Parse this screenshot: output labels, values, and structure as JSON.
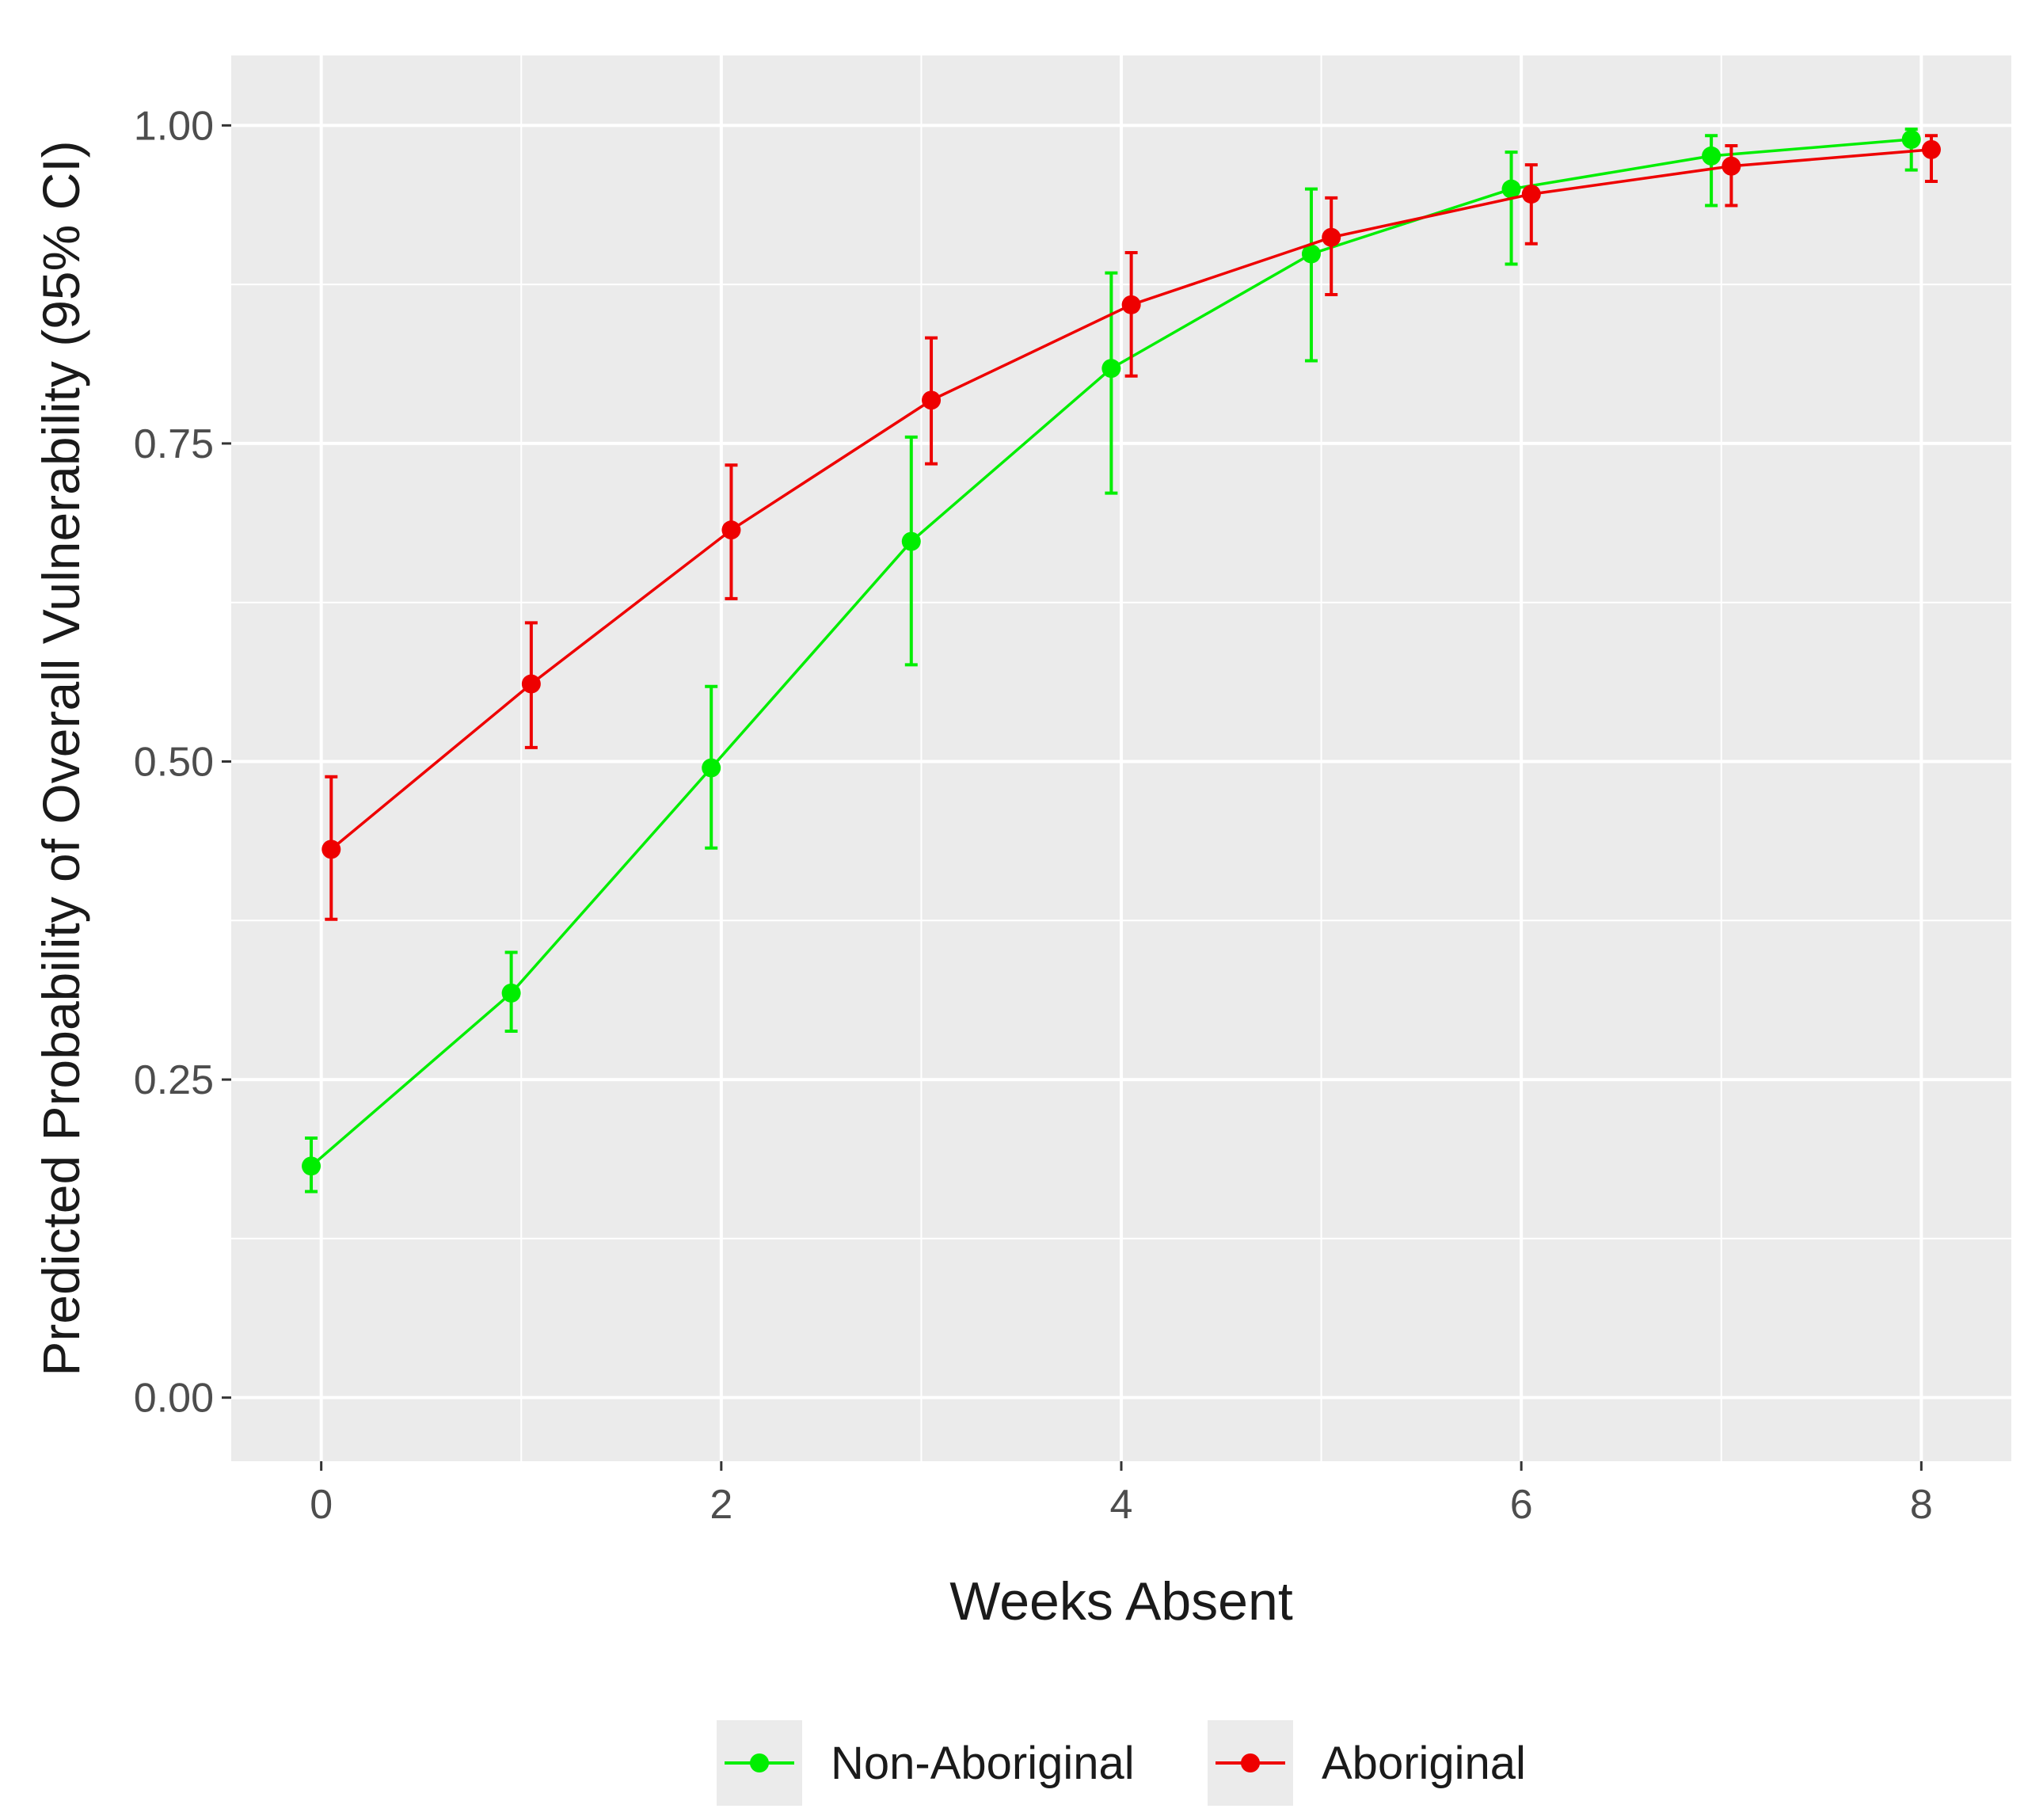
{
  "chart_data": {
    "type": "line",
    "title": "",
    "xlabel": "Weeks Absent",
    "ylabel": "Predicted Probability of Overall Vulnerability (95% CI)",
    "xlim": [
      -0.45,
      8.45
    ],
    "ylim": [
      -0.05,
      1.055
    ],
    "x_ticks": [
      0,
      2,
      4,
      6,
      8
    ],
    "x_tick_labels": [
      "0",
      "2",
      "4",
      "6",
      "8"
    ],
    "y_ticks": [
      0,
      0.25,
      0.5,
      0.75,
      1.0
    ],
    "y_tick_labels": [
      "0.00",
      "0.25",
      "0.50",
      "0.75",
      "1.00"
    ],
    "grid": true,
    "legend_position": "bottom",
    "series": [
      {
        "name": "Non-Aboriginal",
        "color": "#00ee00",
        "x": [
          0,
          1,
          2,
          3,
          4,
          5,
          6,
          7,
          8
        ],
        "y": [
          0.182,
          0.318,
          0.495,
          0.673,
          0.809,
          0.899,
          0.95,
          0.976,
          0.989
        ],
        "ci_low": [
          0.162,
          0.288,
          0.432,
          0.576,
          0.711,
          0.815,
          0.891,
          0.937,
          0.965
        ],
        "ci_high": [
          0.204,
          0.35,
          0.559,
          0.755,
          0.884,
          0.95,
          0.979,
          0.992,
          0.997
        ]
      },
      {
        "name": "Aboriginal",
        "color": "#ee0000",
        "x": [
          0,
          1,
          2,
          3,
          4,
          5,
          6,
          7,
          8
        ],
        "y": [
          0.431,
          0.561,
          0.682,
          0.784,
          0.859,
          0.912,
          0.946,
          0.968,
          0.981
        ],
        "ci_low": [
          0.376,
          0.511,
          0.628,
          0.734,
          0.803,
          0.867,
          0.907,
          0.937,
          0.956
        ],
        "ci_high": [
          0.488,
          0.609,
          0.733,
          0.833,
          0.9,
          0.943,
          0.969,
          0.984,
          0.992
        ]
      }
    ]
  }
}
